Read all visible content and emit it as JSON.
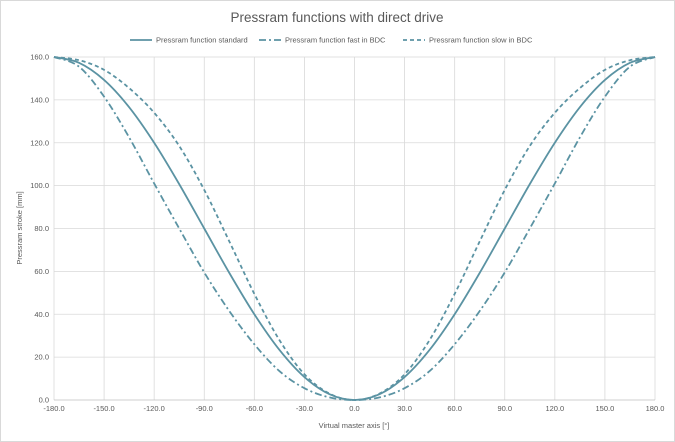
{
  "chart_data": {
    "type": "line",
    "title": "Pressram functions with direct drive",
    "xlabel": "Virtual master axis [°]",
    "ylabel": "Pressram stroke [mm]",
    "xlim": [
      -180,
      180
    ],
    "ylim": [
      0,
      160
    ],
    "x_ticks": [
      "-180.0",
      "-150.0",
      "-120.0",
      "-90.0",
      "-60.0",
      "-30.0",
      "0.0",
      "30.0",
      "60.0",
      "90.0",
      "120.0",
      "150.0",
      "180.0"
    ],
    "y_ticks": [
      "0.0",
      "20.0",
      "40.0",
      "60.0",
      "80.0",
      "100.0",
      "120.0",
      "140.0",
      "160.0"
    ],
    "grid": true,
    "legend_position": "top",
    "color": "#5b93a3",
    "series": [
      {
        "name": "Pressram function standard",
        "style": "solid",
        "x": [
          -180,
          -165,
          -150,
          -135,
          -120,
          -105,
          -90,
          -75,
          -60,
          -45,
          -30,
          -15,
          0,
          15,
          30,
          45,
          60,
          75,
          90,
          105,
          120,
          135,
          150,
          165,
          180
        ],
        "y": [
          160,
          157.3,
          149.3,
          136.6,
          120,
          100.7,
          80,
          59.3,
          40,
          23.4,
          10.7,
          2.7,
          0,
          2.7,
          10.7,
          23.4,
          40,
          59.3,
          80,
          100.7,
          120,
          136.6,
          149.3,
          157.3,
          160
        ]
      },
      {
        "name": "Pressram function fast in BDC",
        "style": "dashdot",
        "x": [
          -180,
          -165,
          -150,
          -135,
          -120,
          -105,
          -90,
          -75,
          -60,
          -45,
          -30,
          -15,
          0,
          15,
          30,
          45,
          60,
          75,
          90,
          105,
          120,
          135,
          150,
          165,
          180
        ],
        "y": [
          160,
          155.5,
          141.5,
          122.5,
          101,
          80,
          59.5,
          41.5,
          26,
          13.5,
          5.5,
          1.2,
          0,
          1.2,
          5.5,
          13.5,
          26,
          41.5,
          59.5,
          80,
          101,
          122.5,
          141.5,
          155.5,
          160
        ]
      },
      {
        "name": "Pressram function slow in BDC",
        "style": "dashed",
        "x": [
          -180,
          -165,
          -150,
          -135,
          -120,
          -105,
          -90,
          -75,
          -60,
          -45,
          -30,
          -15,
          0,
          15,
          30,
          45,
          60,
          75,
          90,
          105,
          120,
          135,
          150,
          165,
          180
        ],
        "y": [
          160,
          158.5,
          154,
          145.5,
          134,
          118.5,
          98,
          74,
          49.5,
          28,
          12,
          3,
          0,
          3,
          12,
          28,
          49.5,
          74,
          98,
          118.5,
          134,
          145.5,
          154,
          158.5,
          160
        ]
      }
    ]
  }
}
